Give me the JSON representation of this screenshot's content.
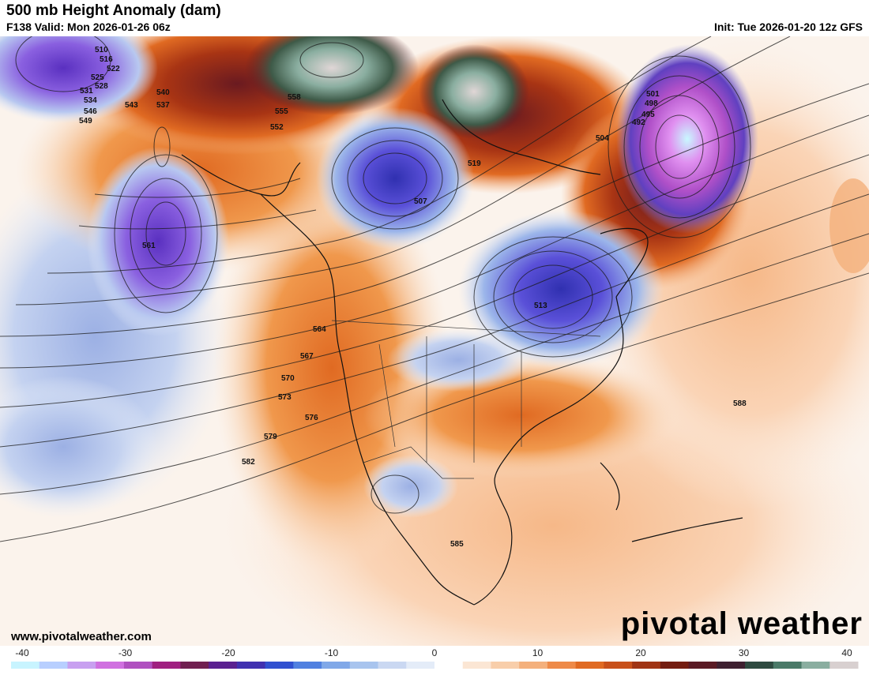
{
  "header": {
    "title": "500 mb Height Anomaly (dam)",
    "valid": "F138 Valid: Mon 2026-01-26 06z",
    "init": "Init: Tue 2026-01-20 12z GFS"
  },
  "footer": {
    "site": "www.pivotalweather.com",
    "logo": "pivotal weather"
  },
  "colorbar": {
    "ticks": [
      "-40",
      "-30",
      "-20",
      "-10",
      "0",
      "10",
      "20",
      "30",
      "40"
    ],
    "colors": [
      "#c8f4ff",
      "#b8cfff",
      "#c8a0f0",
      "#d070e0",
      "#b050c0",
      "#a02080",
      "#702050",
      "#5a2090",
      "#4030b0",
      "#3050d0",
      "#5080e0",
      "#80a8e8",
      "#a8c4ee",
      "#cad8f2",
      "#e4ecf8",
      "#ffffff",
      "#fbe6d4",
      "#f8ceaa",
      "#f4b07c",
      "#ee8a48",
      "#e06a22",
      "#c8501a",
      "#a03414",
      "#741c10",
      "#5a1a24",
      "#3e2030",
      "#2e4a40",
      "#4a7a68",
      "#8aaea0",
      "#d8d0d0"
    ]
  },
  "map": {
    "contour_labels": [
      "510",
      "516",
      "522",
      "525",
      "528",
      "531",
      "534",
      "537",
      "540",
      "543",
      "546",
      "549",
      "552",
      "555",
      "558",
      "561",
      "564",
      "567",
      "570",
      "573",
      "576",
      "579",
      "582",
      "585",
      "588",
      "495",
      "498",
      "501",
      "504",
      "507",
      "513",
      "519",
      "492"
    ]
  }
}
